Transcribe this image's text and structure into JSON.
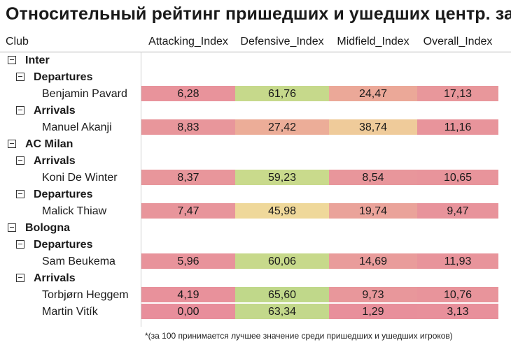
{
  "title": "Относительный рейтинг пришедших и ушедших центр. защ.",
  "columns": {
    "club": "Club",
    "attacking": "Attacking_Index",
    "defensive": "Defensive_Index",
    "midfield": "Midfield_Index",
    "overall": "Overall_Index"
  },
  "groups": [
    {
      "club": "Inter",
      "sections": [
        {
          "label": "Departures",
          "players": [
            {
              "name": "Benjamin Pavard",
              "attacking": "6,28",
              "defensive": "61,76",
              "midfield": "24,47",
              "overall": "17,13",
              "colors": [
                "#e8939b",
                "#c6d98b",
                "#eba898",
                "#e8979b"
              ]
            }
          ]
        },
        {
          "label": "Arrivals",
          "players": [
            {
              "name": "Manuel Akanji",
              "attacking": "8,83",
              "defensive": "27,42",
              "midfield": "38,74",
              "overall": "11,16",
              "colors": [
                "#e8969b",
                "#ecad98",
                "#efcb9a",
                "#e8949b"
              ]
            }
          ]
        }
      ]
    },
    {
      "club": "AC Milan",
      "sections": [
        {
          "label": "Arrivals",
          "players": [
            {
              "name": "Koni De Winter",
              "attacking": "8,37",
              "defensive": "59,23",
              "midfield": "8,54",
              "overall": "10,65",
              "colors": [
                "#e8969b",
                "#c9da8c",
                "#e8969b",
                "#e8949b"
              ]
            }
          ]
        },
        {
          "label": "Departures",
          "players": [
            {
              "name": "Malick Thiaw",
              "attacking": "7,47",
              "defensive": "45,98",
              "midfield": "19,74",
              "overall": "9,47",
              "colors": [
                "#e8959b",
                "#efd89a",
                "#eaa39a",
                "#e8939b"
              ]
            }
          ]
        }
      ]
    },
    {
      "club": "Bologna",
      "sections": [
        {
          "label": "Departures",
          "players": [
            {
              "name": "Sam Beukema",
              "attacking": "5,96",
              "defensive": "60,06",
              "midfield": "14,69",
              "overall": "11,93",
              "colors": [
                "#e8939b",
                "#c7d98b",
                "#e99c9b",
                "#e8949b"
              ]
            }
          ]
        },
        {
          "label": "Arrivals",
          "players": [
            {
              "name": "Torbjørn Heggem",
              "attacking": "4,19",
              "defensive": "65,60",
              "midfield": "9,73",
              "overall": "10,76",
              "colors": [
                "#e8919b",
                "#c0d88a",
                "#e8979b",
                "#e8949b"
              ]
            },
            {
              "name": "Martin Vitík",
              "attacking": "0,00",
              "defensive": "63,34",
              "midfield": "1,29",
              "overall": "3,13",
              "colors": [
                "#e88e9b",
                "#c3d88b",
                "#e88f9b",
                "#e8909b"
              ]
            }
          ]
        }
      ]
    }
  ],
  "footnote": "*(за 100 принимается лучшее значение среди пришедших и ушедших игроков)"
}
